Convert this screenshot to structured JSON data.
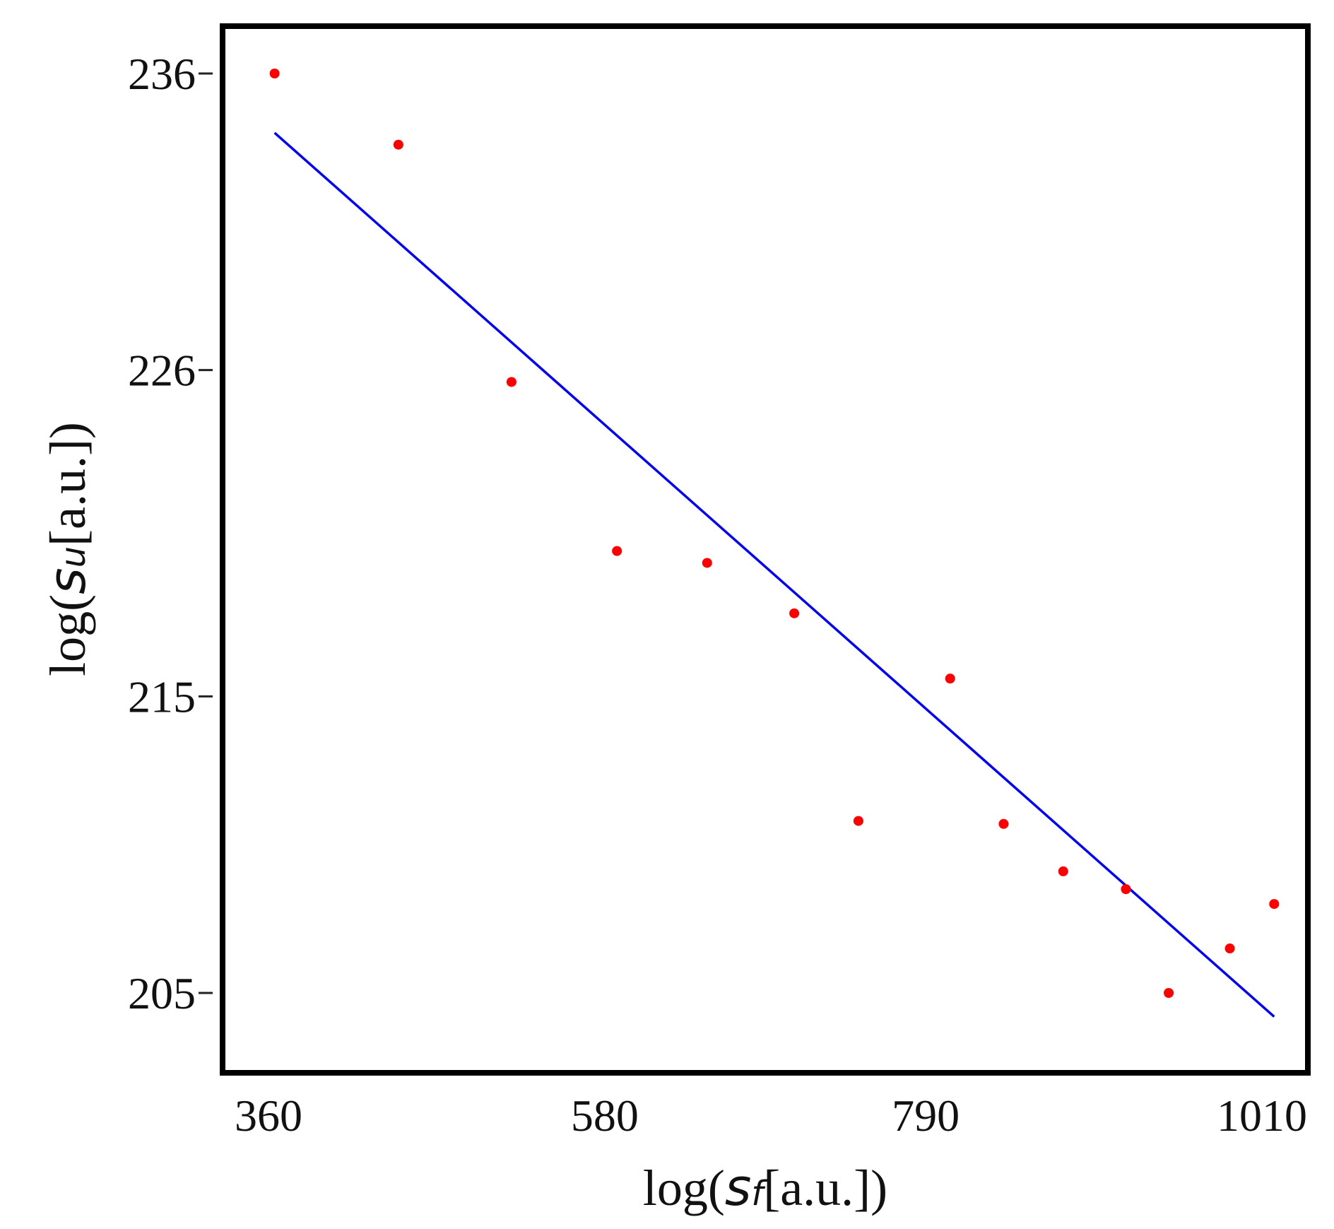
{
  "chart_data": {
    "type": "scatter",
    "xlabel": {
      "prefix": "log(",
      "symbol": "s",
      "subscript": "f",
      "suffix": "[a.u.])"
    },
    "ylabel": {
      "prefix": "log(",
      "symbol": "s",
      "subscript": "u",
      "suffix": "[a.u.])"
    },
    "x_ticks": [
      360,
      580,
      790,
      1010
    ],
    "y_ticks": [
      205,
      215,
      226,
      236
    ],
    "x_tick_labels": [
      "360",
      "580",
      "790",
      "1010"
    ],
    "y_tick_labels": [
      "205",
      "215",
      "226",
      "236"
    ],
    "grid": false,
    "series": [
      {
        "type": "scatter",
        "color": "#ff0000",
        "points": [
          {
            "x": 364,
            "y": 236.0
          },
          {
            "x": 445,
            "y": 233.6
          },
          {
            "x": 519,
            "y": 225.6
          },
          {
            "x": 588,
            "y": 219.9
          },
          {
            "x": 647,
            "y": 219.5
          },
          {
            "x": 704,
            "y": 217.8
          },
          {
            "x": 746,
            "y": 210.8
          },
          {
            "x": 806,
            "y": 215.6
          },
          {
            "x": 841,
            "y": 210.7
          },
          {
            "x": 880,
            "y": 209.1
          },
          {
            "x": 921,
            "y": 208.5
          },
          {
            "x": 949,
            "y": 205.0
          },
          {
            "x": 989,
            "y": 206.5
          },
          {
            "x": 1018,
            "y": 208.0
          }
        ]
      },
      {
        "type": "line",
        "color": "#0000ff",
        "points": [
          {
            "x": 364,
            "y": 234.0
          },
          {
            "x": 1018,
            "y": 204.2
          }
        ]
      }
    ]
  }
}
